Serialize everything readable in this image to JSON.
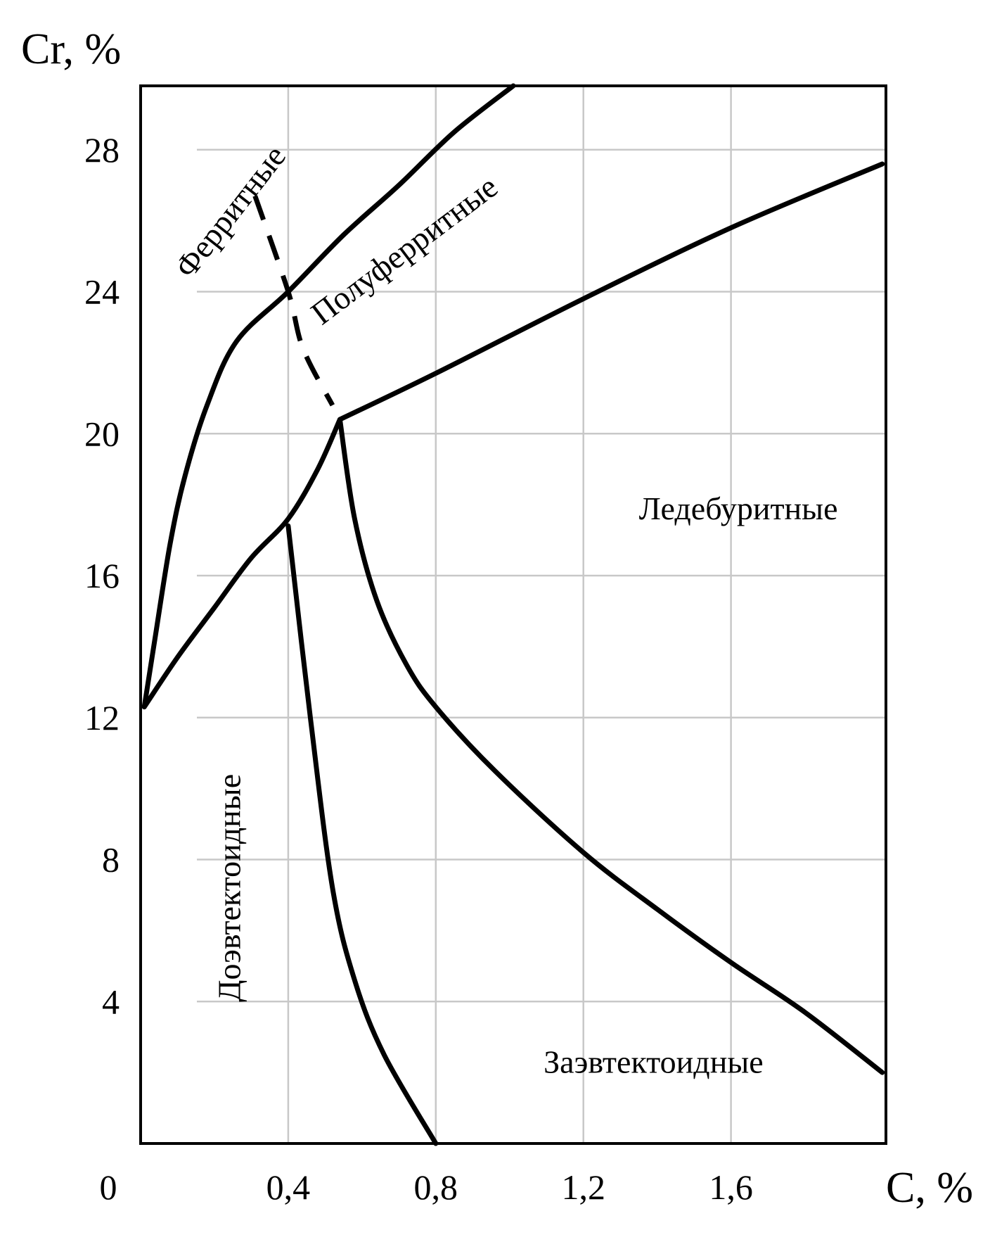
{
  "chart_data": {
    "type": "line",
    "title": "",
    "xlabel": "C, %",
    "ylabel": "Cr, %",
    "origin_label": "0",
    "xlim": [
      0,
      2.02
    ],
    "ylim": [
      0,
      29.8
    ],
    "x_ticks": [
      {
        "value": 0.4,
        "label": "0,4"
      },
      {
        "value": 0.8,
        "label": "0,8"
      },
      {
        "value": 1.2,
        "label": "1,2"
      },
      {
        "value": 1.6,
        "label": "1,6"
      }
    ],
    "y_ticks": [
      {
        "value": 4,
        "label": "4"
      },
      {
        "value": 8,
        "label": "8"
      },
      {
        "value": 12,
        "label": "12"
      },
      {
        "value": 16,
        "label": "16"
      },
      {
        "value": 20,
        "label": "20"
      },
      {
        "value": 24,
        "label": "24"
      },
      {
        "value": 28,
        "label": "28"
      }
    ],
    "grid": true,
    "curves": [
      {
        "id": "ferrite-boundary",
        "style": "solid",
        "points": [
          [
            0.01,
            12.3
          ],
          [
            0.04,
            14.3
          ],
          [
            0.08,
            16.9
          ],
          [
            0.12,
            18.8
          ],
          [
            0.18,
            20.8
          ],
          [
            0.26,
            22.6
          ],
          [
            0.4,
            24.0
          ],
          [
            0.55,
            25.6
          ],
          [
            0.7,
            27.0
          ],
          [
            0.85,
            28.5
          ],
          [
            1.01,
            29.8
          ]
        ]
      },
      {
        "id": "lower-ferrite-boundary",
        "style": "solid",
        "points": [
          [
            0.01,
            12.3
          ],
          [
            0.1,
            13.7
          ],
          [
            0.2,
            15.1
          ],
          [
            0.3,
            16.5
          ],
          [
            0.4,
            17.6
          ],
          [
            0.48,
            19.0
          ],
          [
            0.54,
            20.4
          ]
        ]
      },
      {
        "id": "ledeburite-upper-boundary",
        "style": "solid",
        "points": [
          [
            0.54,
            20.4
          ],
          [
            0.8,
            21.7
          ],
          [
            1.2,
            23.8
          ],
          [
            1.6,
            25.8
          ],
          [
            2.01,
            27.6
          ]
        ]
      },
      {
        "id": "ledeburite-lower-boundary",
        "style": "solid",
        "points": [
          [
            0.54,
            20.4
          ],
          [
            0.58,
            17.6
          ],
          [
            0.64,
            15.3
          ],
          [
            0.72,
            13.5
          ],
          [
            0.8,
            12.3
          ],
          [
            0.96,
            10.5
          ],
          [
            1.2,
            8.2
          ],
          [
            1.4,
            6.6
          ],
          [
            1.6,
            5.1
          ],
          [
            1.8,
            3.7
          ],
          [
            2.01,
            2.0
          ]
        ]
      },
      {
        "id": "eutectoid-boundary",
        "style": "solid",
        "points": [
          [
            0.4,
            17.4
          ],
          [
            0.46,
            12.0
          ],
          [
            0.52,
            7.2
          ],
          [
            0.58,
            4.6
          ],
          [
            0.66,
            2.5
          ],
          [
            0.8,
            0.0
          ]
        ]
      },
      {
        "id": "dashed-boundary",
        "style": "dashed",
        "points": [
          [
            0.31,
            26.7
          ],
          [
            0.4,
            24.0
          ],
          [
            0.44,
            22.4
          ],
          [
            0.52,
            20.8
          ]
        ]
      }
    ],
    "regions": [
      {
        "id": "ferritic",
        "label": "Ферритные",
        "x": 0.25,
        "y": 26.2,
        "angle": -52
      },
      {
        "id": "semi-ferritic",
        "label": "Полуферритные",
        "x": 0.72,
        "y": 25.1,
        "angle": -37
      },
      {
        "id": "ledeburitic",
        "label": "Ледебуритные",
        "x": 1.62,
        "y": 17.8,
        "angle": 0
      },
      {
        "id": "hypoeutectoid",
        "label": "Доэвтектоидные",
        "x": 0.25,
        "y": 7.2,
        "angle": -90
      },
      {
        "id": "hypereutectoid",
        "label": "Заэвтектоидные",
        "x": 1.39,
        "y": 2.2,
        "angle": 0
      }
    ]
  }
}
